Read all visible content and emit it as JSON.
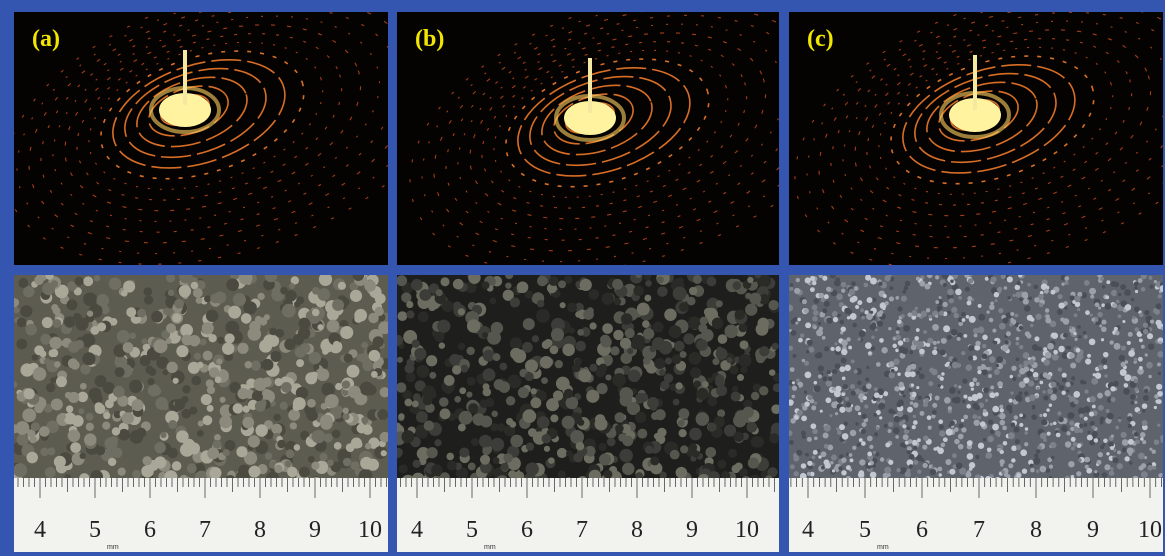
{
  "panels": [
    {
      "label": "(a)",
      "ruler": {
        "numbers": [
          "4",
          "5",
          "6",
          "7",
          "8",
          "9",
          "10"
        ],
        "unit": "mm"
      }
    },
    {
      "label": "(b)",
      "ruler": {
        "numbers": [
          "4",
          "5",
          "6",
          "7",
          "8",
          "9",
          "10"
        ],
        "unit": "mm"
      }
    },
    {
      "label": "(c)",
      "ruler": {
        "numbers": [
          "4",
          "5",
          "6",
          "7",
          "8",
          "9",
          "10"
        ],
        "unit": "mm"
      }
    }
  ]
}
